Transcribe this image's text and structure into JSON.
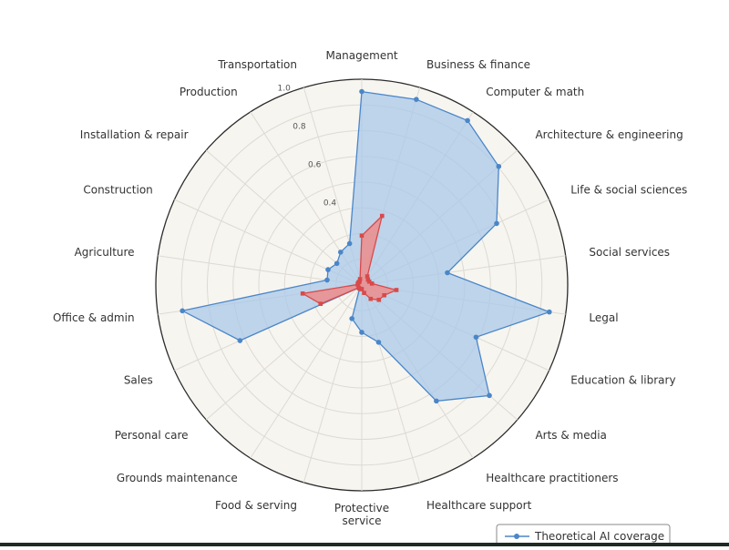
{
  "chart_data": {
    "type": "radar",
    "title": "",
    "categories": [
      "Management",
      "Business & finance",
      "Computer & math",
      "Architecture & engineering",
      "Life & social sciences",
      "Social services",
      "Legal",
      "Education & library",
      "Arts & media",
      "Healthcare practitioners",
      "Healthcare support",
      "Protective\nservice",
      "Food & serving",
      "Grounds maintenance",
      "Personal care",
      "Sales",
      "Office & admin",
      "Agriculture",
      "Construction",
      "Installation & repair",
      "Production",
      "Transportation"
    ],
    "rlim": [
      0,
      1.0
    ],
    "rticks": [
      0.4,
      0.6,
      0.8,
      1.0
    ],
    "rtick_labels": [
      "0.4",
      "0.6",
      "0.8",
      "1.0"
    ],
    "series": [
      {
        "name": "Theoretical AI coverage",
        "color": "#4a86c8",
        "fill": "#a9c8ea",
        "values": [
          0.94,
          0.94,
          0.95,
          0.88,
          0.72,
          0.42,
          0.92,
          0.61,
          0.82,
          0.67,
          0.29,
          0.23,
          0.17,
          0.02,
          0.02,
          0.65,
          0.88,
          0.17,
          0.18,
          0.16,
          0.19,
          0.21
        ]
      },
      {
        "name": "",
        "color": "#d84a4a",
        "fill": "#ec8c8c",
        "values": [
          0.24,
          0.35,
          0.05,
          0.04,
          0.04,
          0.05,
          0.17,
          0.12,
          0.11,
          0.08,
          0.04,
          0.02,
          0.02,
          0.02,
          0.02,
          0.22,
          0.29,
          0.02,
          0.02,
          0.02,
          0.02,
          0.03
        ]
      }
    ],
    "grid": true,
    "legend": "bottom-right"
  }
}
